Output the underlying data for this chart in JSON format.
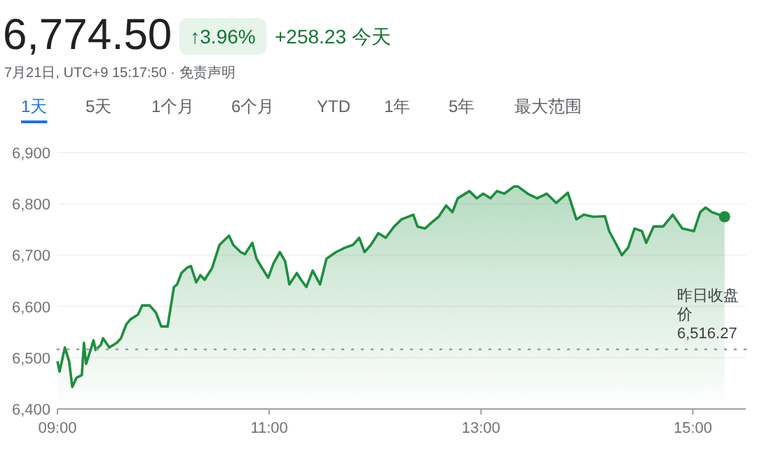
{
  "chart_data": {
    "type": "area",
    "title": "6,774.50",
    "annotations": [
      "↑3.96%",
      "+258.23 今天",
      "7月21日, UTC+9 15:17:50 · 免责声明",
      "1天",
      "5天",
      "1个月",
      "6个月",
      "YTD",
      "1年",
      "5年",
      "最大范围"
    ],
    "series": [
      {
        "color": "#1e8e3e",
        "x": [
          9.0,
          9.02,
          9.07,
          9.11,
          9.14,
          9.18,
          9.23,
          9.25,
          9.27,
          9.32,
          9.34,
          9.36,
          9.41,
          9.43,
          9.49,
          9.56,
          9.6,
          9.65,
          9.69,
          9.76,
          9.8,
          9.87,
          9.93,
          9.98,
          10.04,
          10.1,
          10.13,
          10.17,
          10.22,
          10.26,
          10.31,
          10.35,
          10.39,
          10.46,
          10.53,
          10.62,
          10.66,
          10.73,
          10.77,
          10.84,
          10.88,
          10.92,
          10.99,
          11.04,
          11.1,
          11.15,
          11.19,
          11.26,
          11.3,
          11.35,
          11.41,
          11.48,
          11.54,
          11.63,
          11.72,
          11.79,
          11.85,
          11.9,
          11.96,
          12.03,
          12.1,
          12.18,
          12.25,
          12.36,
          12.4,
          12.47,
          12.54,
          12.6,
          12.67,
          12.73,
          12.78,
          12.89,
          12.96,
          13.02,
          13.09,
          13.15,
          13.22,
          13.31,
          13.35,
          13.44,
          13.53,
          13.62,
          13.71,
          13.82,
          13.9,
          13.97,
          14.06,
          14.17,
          14.21,
          14.28,
          14.33,
          14.39,
          14.45,
          14.52,
          14.56,
          14.63,
          14.72,
          14.81,
          14.9,
          15.01,
          15.07,
          15.12,
          15.18,
          15.25,
          15.3
        ],
        "values": [
          6493,
          6473,
          6520,
          6493,
          6443,
          6461,
          6466,
          6529,
          6488,
          6520,
          6534,
          6515,
          6525,
          6538,
          6520,
          6529,
          6538,
          6565,
          6575,
          6584,
          6602,
          6602,
          6588,
          6561,
          6561,
          6638,
          6643,
          6665,
          6675,
          6679,
          6647,
          6661,
          6652,
          6675,
          6720,
          6738,
          6720,
          6706,
          6702,
          6724,
          6693,
          6679,
          6656,
          6684,
          6706,
          6688,
          6643,
          6665,
          6652,
          6638,
          6670,
          6643,
          6693,
          6706,
          6715,
          6720,
          6734,
          6706,
          6720,
          6743,
          6734,
          6756,
          6770,
          6779,
          6756,
          6752,
          6765,
          6775,
          6797,
          6784,
          6811,
          6825,
          6811,
          6820,
          6811,
          6825,
          6820,
          6834,
          6834,
          6820,
          6811,
          6820,
          6802,
          6822,
          6770,
          6779,
          6775,
          6776,
          6747,
          6720,
          6700,
          6715,
          6752,
          6747,
          6724,
          6756,
          6756,
          6779,
          6752,
          6747,
          6784,
          6793,
          6784,
          6779,
          6775
        ]
      }
    ],
    "xlim": [
      9,
      15.5
    ],
    "xticks": [
      {
        "value": 9,
        "label": "09:00"
      },
      {
        "value": 11,
        "label": "11:00"
      },
      {
        "value": 13,
        "label": "13:00"
      },
      {
        "value": 15,
        "label": "15:00"
      }
    ],
    "ylim": [
      6400,
      6900
    ],
    "yticks": [
      {
        "value": 6400,
        "label": "6,400"
      },
      {
        "value": 6500,
        "label": "6,500"
      },
      {
        "value": 6600,
        "label": "6,600"
      },
      {
        "value": 6700,
        "label": "6,700"
      },
      {
        "value": 6800,
        "label": "6,800"
      },
      {
        "value": 6900,
        "label": "6,900"
      }
    ],
    "grid": "y",
    "ref_lines": [
      {
        "axis": "y",
        "value": 6516.27,
        "label": "昨日收盘价 6,516.27",
        "color": "#9aa0a6",
        "line_style": "dotted"
      }
    ]
  }
}
